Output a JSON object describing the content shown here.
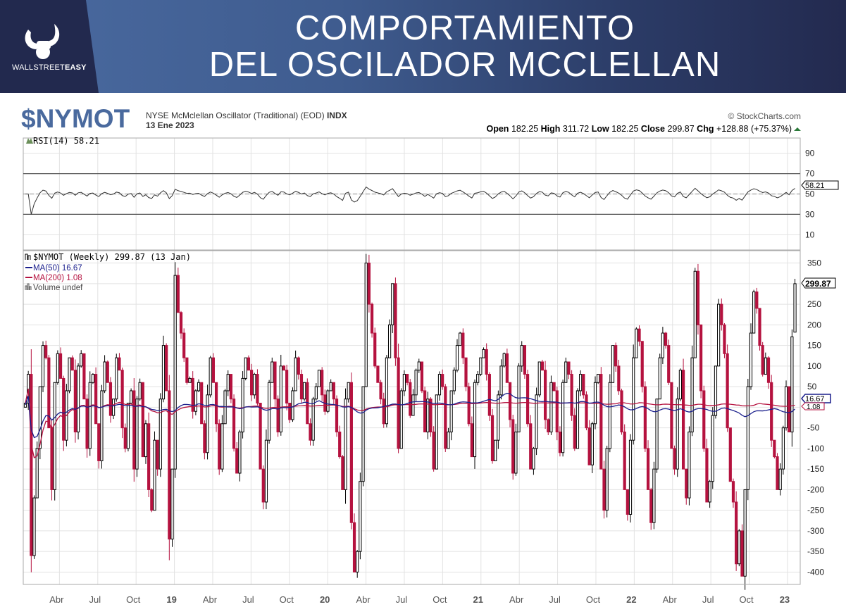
{
  "banner": {
    "brand": "WALLSTREET",
    "brand_bold": "EASY",
    "title_line1": "COMPORTAMIENTO",
    "title_line2": "DEL OSCILADOR MCCLELLAN"
  },
  "header": {
    "symbol": "$NYMOT",
    "description": "NYSE McMclellan Oscillator (Traditional) (EOD)",
    "exchange": "INDX",
    "date": "13 Ene 2023",
    "copyright": "© StockCharts.com",
    "open_label": "Open",
    "open": "182.25",
    "high_label": "High",
    "high": "311.72",
    "low_label": "Low",
    "low": "182.25",
    "close_label": "Close",
    "close": "299.87",
    "chg_label": "Chg",
    "chg": "+128.88 (+75.37%)"
  },
  "colors": {
    "up": "#000000",
    "down": "#b5123f",
    "ma50": "#1a1f8c",
    "ma200": "#b5123f",
    "grid": "#e2e2e2",
    "accent": "#4a6a9e"
  },
  "chart_data": {
    "type": "candlestick",
    "title": "$NYMOT (Weekly)",
    "period": "weekly",
    "x_range": [
      "2018-01",
      "2023-01-13"
    ],
    "x_tick_labels": [
      {
        "label": "Abr",
        "year": 2018,
        "month": 4
      },
      {
        "label": "Jul",
        "year": 2018,
        "month": 7
      },
      {
        "label": "Oct",
        "year": 2018,
        "month": 10
      },
      {
        "label": "19",
        "year": 2019,
        "month": 1,
        "bold": true
      },
      {
        "label": "Abr",
        "year": 2019,
        "month": 4
      },
      {
        "label": "Jul",
        "year": 2019,
        "month": 7
      },
      {
        "label": "Oct",
        "year": 2019,
        "month": 10
      },
      {
        "label": "20",
        "year": 2020,
        "month": 1,
        "bold": true
      },
      {
        "label": "Abr",
        "year": 2020,
        "month": 4
      },
      {
        "label": "Jul",
        "year": 2020,
        "month": 7
      },
      {
        "label": "Oct",
        "year": 2020,
        "month": 10
      },
      {
        "label": "21",
        "year": 2021,
        "month": 1,
        "bold": true
      },
      {
        "label": "Abr",
        "year": 2021,
        "month": 4
      },
      {
        "label": "Jul",
        "year": 2021,
        "month": 7
      },
      {
        "label": "Oct",
        "year": 2021,
        "month": 10
      },
      {
        "label": "22",
        "year": 2022,
        "month": 1,
        "bold": true
      },
      {
        "label": "Abr",
        "year": 2022,
        "month": 4
      },
      {
        "label": "Jul",
        "year": 2022,
        "month": 7
      },
      {
        "label": "Oct",
        "year": 2022,
        "month": 10
      },
      {
        "label": "23",
        "year": 2023,
        "month": 1,
        "bold": true
      }
    ],
    "rsi_panel": {
      "legend": "RSI(14) 58.21",
      "last_value": "58.21",
      "ylim": [
        -5,
        105
      ],
      "y_ticks": [
        90,
        70,
        50,
        30,
        10
      ],
      "levels": [
        70,
        30
      ]
    },
    "price_panel": {
      "legend_main": "$NYMOT (Weekly) 299.87 (13 Jan)",
      "legend_ma50": "MA(50) 16.67",
      "legend_ma200": "MA(200) 1.08",
      "legend_volume": "Volume undef",
      "last_value": "299.87",
      "ma50_value": "16.67",
      "ma200_value": "1.08",
      "ylim": [
        -430,
        380
      ],
      "y_ticks": [
        350,
        250,
        200,
        150,
        100,
        50,
        -50,
        -100,
        -150,
        -200,
        -250,
        -300,
        -350,
        -400
      ],
      "last_open": 182.25,
      "last_high": 311.72,
      "last_low": 182.25,
      "closes": [
        10,
        80,
        -360,
        -220,
        -100,
        50,
        150,
        120,
        -50,
        -200,
        60,
        130,
        70,
        -80,
        40,
        120,
        90,
        -60,
        100,
        130,
        20,
        -100,
        60,
        80,
        -40,
        -130,
        40,
        110,
        60,
        -20,
        20,
        120,
        90,
        -50,
        -100,
        10,
        40,
        -150,
        20,
        60,
        -120,
        -40,
        -200,
        -250,
        -80,
        -150,
        20,
        150,
        40,
        -320,
        -150,
        320,
        230,
        180,
        120,
        60,
        70,
        -10,
        40,
        60,
        -40,
        -110,
        30,
        120,
        60,
        -40,
        -150,
        -40,
        40,
        80,
        20,
        -100,
        -160,
        -60,
        70,
        120,
        90,
        30,
        80,
        10,
        -150,
        -230,
        -80,
        60,
        110,
        20,
        -60,
        100,
        90,
        10,
        -30,
        40,
        120,
        80,
        20,
        60,
        -40,
        -80,
        20,
        50,
        90,
        30,
        -10,
        40,
        60,
        20,
        -60,
        -120,
        -200,
        20,
        60,
        -280,
        -400,
        -350,
        -180,
        50,
        350,
        250,
        180,
        100,
        60,
        20,
        -40,
        120,
        200,
        300,
        120,
        -100,
        40,
        80,
        60,
        -20,
        30,
        90,
        110,
        40,
        -60,
        20,
        -60,
        -150,
        30,
        80,
        50,
        -100,
        -60,
        40,
        90,
        150,
        180,
        120,
        50,
        -40,
        -120,
        60,
        80,
        120,
        140,
        80,
        -20,
        -130,
        -80,
        30,
        100,
        130,
        60,
        -30,
        -160,
        -60,
        100,
        150,
        80,
        -40,
        -150,
        -100,
        30,
        110,
        90,
        -30,
        -60,
        60,
        40,
        -60,
        -110,
        60,
        110,
        80,
        -20,
        -100,
        40,
        80,
        30,
        -50,
        -140,
        -40,
        60,
        80,
        -150,
        -250,
        -100,
        60,
        150,
        100,
        40,
        -60,
        -200,
        -260,
        -80,
        120,
        190,
        160,
        50,
        -100,
        -200,
        -280,
        -150,
        20,
        120,
        180,
        150,
        60,
        -100,
        -150,
        20,
        90,
        -150,
        -220,
        -60,
        120,
        330,
        200,
        40,
        -100,
        -230,
        -180,
        -20,
        100,
        250,
        200,
        130,
        -50,
        -180,
        -230,
        -380,
        -300,
        -410,
        -200,
        50,
        180,
        280,
        240,
        150,
        80,
        120,
        60,
        -80,
        -120,
        -200,
        -150,
        -50,
        50,
        -60,
        170.99,
        299.87
      ]
    }
  }
}
